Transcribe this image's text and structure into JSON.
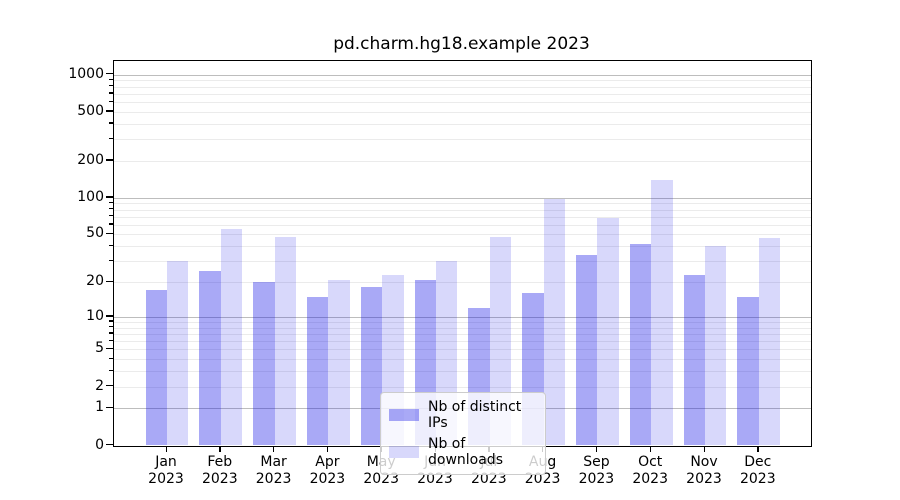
{
  "chart_data": {
    "type": "bar",
    "title": "pd.charm.hg18.example 2023",
    "months": [
      "Jan",
      "Feb",
      "Mar",
      "Apr",
      "May",
      "Jun",
      "Jul",
      "Aug",
      "Sep",
      "Oct",
      "Nov",
      "Dec"
    ],
    "year": "2023",
    "categories": [
      "Jan 2023",
      "Feb 2023",
      "Mar 2023",
      "Apr 2023",
      "May 2023",
      "Jun 2023",
      "Jul 2023",
      "Aug 2023",
      "Sep 2023",
      "Oct 2023",
      "Nov 2023",
      "Dec 2023"
    ],
    "series": [
      {
        "name": "Nb of distinct IPs",
        "color": "rgba(10,10,230,0.35)",
        "values": [
          17,
          25,
          20,
          15,
          18,
          21,
          12,
          16,
          34,
          42,
          23,
          15
        ]
      },
      {
        "name": "Nb of downloads",
        "color": "rgba(10,10,230,0.16)",
        "values": [
          30,
          55,
          48,
          21,
          23,
          30,
          48,
          97,
          68,
          140,
          40,
          47
        ]
      }
    ],
    "yscale": "log1p",
    "yticks": [
      0,
      1,
      2,
      5,
      10,
      20,
      50,
      100,
      200,
      500,
      1000
    ],
    "ylim": [
      0,
      1300
    ],
    "grid": true,
    "legend_position": "lower center",
    "colors": {
      "major_grid": "#bdbdbd",
      "minor_grid": "#ebebeb",
      "spine": "#000000",
      "text": "#000000"
    }
  }
}
